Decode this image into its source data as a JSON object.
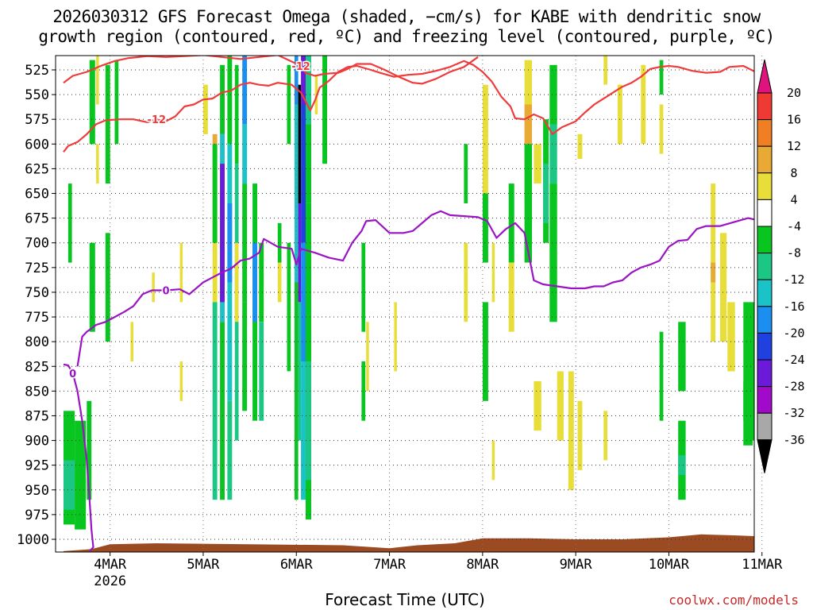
{
  "title": {
    "line1": "2026030312 GFS Forecast Omega (shaded, −cm/s) for KABE with dendritic snow",
    "line2": "growth region (contoured, red, ºC) and freezing level (contoured, purple, ºC)"
  },
  "xlabel": "Forecast Time (UTC)",
  "credit": "coolwx.com/models",
  "chart_data": {
    "type": "heatmap",
    "title": "2026030312 GFS Forecast Omega (shaded, −cm/s) for KABE with dendritic snow growth region (contoured, red, ºC) and freezing level (contoured, purple, ºC)",
    "xlabel": "Forecast Time (UTC)",
    "ylabel": "",
    "x_axis": {
      "unit": "days from 2026-03-03 12Z",
      "range": [
        0,
        7.75
      ],
      "ticks": [
        {
          "x": 0.5,
          "label": "4MAR",
          "sublabel": "2026"
        },
        {
          "x": 1.5,
          "label": "5MAR"
        },
        {
          "x": 2.5,
          "label": "6MAR"
        },
        {
          "x": 3.5,
          "label": "7MAR"
        },
        {
          "x": 4.5,
          "label": "8MAR"
        },
        {
          "x": 5.5,
          "label": "9MAR"
        },
        {
          "x": 6.5,
          "label": "10MAR"
        },
        {
          "x": 7.5,
          "label": "11MAR"
        }
      ]
    },
    "y_axis": {
      "unit": "hPa",
      "range": [
        1012,
        510
      ],
      "inverted": true,
      "ticks": [
        525,
        550,
        575,
        600,
        625,
        650,
        675,
        700,
        725,
        750,
        775,
        800,
        825,
        850,
        875,
        900,
        925,
        950,
        975,
        1000
      ]
    },
    "grid": "dotted",
    "colorbar": {
      "levels": [
        20,
        16,
        12,
        8,
        4,
        -4,
        -8,
        -12,
        -16,
        -20,
        -24,
        -28,
        -32,
        -36
      ],
      "colors": {
        "gt20": "#e0127e",
        "16to20": "#ef3a34",
        "12to16": "#f07e22",
        "8to12": "#e8aa34",
        "4to8": "#e8de3a",
        "neg4to4": "#ffffff",
        "neg8toneg4": "#08c520",
        "neg12toneg8": "#1cc786",
        "neg16toneg12": "#1ac3c7",
        "neg20toneg16": "#1a8ff0",
        "neg24toneg20": "#2040e0",
        "neg28toneg24": "#6a1ad8",
        "neg32toneg28": "#a00ac8",
        "neg36toneg32": "#a8a8a8",
        "lt_neg36": "#000000"
      }
    },
    "ground_color": "#9c4a22",
    "series": [
      {
        "name": "-12",
        "color": "#ef3b3b",
        "points": [
          [
            0.0,
            608
          ],
          [
            0.05,
            602
          ],
          [
            0.15,
            598
          ],
          [
            0.25,
            590
          ],
          [
            0.35,
            580
          ],
          [
            0.45,
            576
          ],
          [
            0.6,
            575
          ],
          [
            0.75,
            575
          ],
          [
            0.9,
            578
          ],
          [
            1.0,
            575
          ],
          [
            1.1,
            577
          ],
          [
            1.2,
            572
          ],
          [
            1.3,
            562
          ],
          [
            1.4,
            560
          ],
          [
            1.5,
            555
          ],
          [
            1.6,
            554
          ],
          [
            1.7,
            548
          ],
          [
            1.8,
            546
          ],
          [
            1.9,
            540
          ],
          [
            2.0,
            538
          ],
          [
            2.1,
            540
          ],
          [
            2.2,
            541
          ],
          [
            2.3,
            538
          ],
          [
            2.45,
            540
          ],
          [
            2.55,
            548
          ],
          [
            2.65,
            566
          ],
          [
            2.7,
            556
          ],
          [
            2.75,
            543
          ],
          [
            2.85,
            536
          ],
          [
            2.95,
            527
          ],
          [
            3.05,
            522
          ],
          [
            3.15,
            521
          ],
          [
            3.3,
            525
          ],
          [
            3.4,
            528
          ],
          [
            3.55,
            532
          ],
          [
            3.7,
            530
          ],
          [
            3.85,
            529
          ],
          [
            4.0,
            526
          ],
          [
            4.15,
            522
          ],
          [
            4.3,
            516
          ],
          [
            4.4,
            520
          ],
          [
            4.5,
            527
          ],
          [
            4.6,
            537
          ],
          [
            4.7,
            552
          ],
          [
            4.8,
            562
          ],
          [
            4.85,
            574
          ],
          [
            4.95,
            575
          ],
          [
            5.05,
            570
          ],
          [
            5.15,
            574
          ],
          [
            5.25,
            590
          ],
          [
            5.35,
            583
          ],
          [
            5.5,
            577
          ],
          [
            5.6,
            568
          ],
          [
            5.7,
            560
          ],
          [
            5.8,
            554
          ],
          [
            5.9,
            548
          ],
          [
            6.0,
            542
          ],
          [
            6.1,
            538
          ],
          [
            6.2,
            532
          ],
          [
            6.3,
            524
          ],
          [
            6.4,
            522
          ],
          [
            6.5,
            521
          ],
          [
            6.6,
            522
          ],
          [
            6.75,
            526
          ],
          [
            6.9,
            528
          ],
          [
            7.05,
            527
          ],
          [
            7.15,
            522
          ],
          [
            7.3,
            521
          ],
          [
            7.45,
            528
          ],
          [
            7.6,
            528
          ]
        ],
        "label_x": 0.95
      },
      {
        "name": "-12",
        "color": "#ef3b3b",
        "points": [
          [
            0.0,
            538
          ],
          [
            0.1,
            531
          ],
          [
            0.25,
            527
          ],
          [
            0.4,
            521
          ],
          [
            0.55,
            516
          ],
          [
            0.7,
            513
          ],
          [
            0.9,
            511
          ],
          [
            1.1,
            512
          ],
          [
            1.3,
            511
          ],
          [
            1.5,
            510
          ],
          [
            1.7,
            512
          ],
          [
            1.9,
            514
          ],
          [
            2.1,
            512
          ],
          [
            2.3,
            510
          ],
          [
            2.55,
            521
          ],
          [
            2.6,
            528
          ],
          [
            2.7,
            531
          ],
          [
            2.8,
            529
          ],
          [
            2.95,
            528
          ],
          [
            3.05,
            524
          ],
          [
            3.15,
            519
          ],
          [
            3.3,
            519
          ],
          [
            3.45,
            525
          ],
          [
            3.6,
            532
          ],
          [
            3.75,
            538
          ],
          [
            3.85,
            539
          ],
          [
            4.0,
            534
          ],
          [
            4.15,
            527
          ],
          [
            4.3,
            522
          ],
          [
            4.45,
            512
          ]
        ],
        "label_x": 2.5
      },
      {
        "name": "0",
        "color": "#9a14c4",
        "points": [
          [
            0.0,
            823
          ],
          [
            0.05,
            824
          ],
          [
            0.1,
            832
          ],
          [
            0.15,
            850
          ],
          [
            0.2,
            880
          ],
          [
            0.25,
            920
          ],
          [
            0.28,
            960
          ],
          [
            0.3,
            990
          ],
          [
            0.32,
            1008
          ],
          [
            0.28,
            1012
          ]
        ],
        "label_x": 0.08
      },
      {
        "name": "0",
        "color": "#9a14c4",
        "points": [
          [
            0.15,
            825
          ],
          [
            0.2,
            795
          ],
          [
            0.25,
            790
          ],
          [
            0.35,
            783
          ],
          [
            0.45,
            780
          ],
          [
            0.55,
            775
          ],
          [
            0.65,
            770
          ],
          [
            0.75,
            764
          ],
          [
            0.85,
            752
          ],
          [
            0.95,
            748
          ],
          [
            1.1,
            748
          ],
          [
            1.25,
            747
          ],
          [
            1.35,
            752
          ],
          [
            1.5,
            740
          ],
          [
            1.6,
            735
          ],
          [
            1.7,
            730
          ],
          [
            1.8,
            726
          ],
          [
            1.9,
            718
          ],
          [
            2.0,
            716
          ],
          [
            2.1,
            710
          ],
          [
            2.15,
            696
          ],
          [
            2.3,
            704
          ],
          [
            2.45,
            706
          ],
          [
            2.5,
            722
          ],
          [
            2.55,
            706
          ],
          [
            2.7,
            710
          ],
          [
            2.85,
            715
          ],
          [
            3.0,
            718
          ],
          [
            3.1,
            700
          ],
          [
            3.2,
            688
          ],
          [
            3.25,
            678
          ],
          [
            3.35,
            677
          ],
          [
            3.5,
            690
          ],
          [
            3.65,
            690
          ],
          [
            3.75,
            688
          ],
          [
            3.85,
            680
          ],
          [
            3.95,
            672
          ],
          [
            4.05,
            668
          ],
          [
            4.15,
            672
          ],
          [
            4.3,
            673
          ],
          [
            4.45,
            674
          ],
          [
            4.55,
            678
          ],
          [
            4.65,
            695
          ],
          [
            4.75,
            686
          ],
          [
            4.85,
            680
          ],
          [
            4.95,
            690
          ],
          [
            5.05,
            738
          ],
          [
            5.15,
            742
          ],
          [
            5.3,
            744
          ],
          [
            5.45,
            746
          ],
          [
            5.6,
            746
          ],
          [
            5.7,
            744
          ],
          [
            5.8,
            744
          ],
          [
            5.9,
            740
          ],
          [
            6.0,
            738
          ],
          [
            6.1,
            730
          ],
          [
            6.2,
            725
          ],
          [
            6.3,
            722
          ],
          [
            6.4,
            718
          ],
          [
            6.5,
            704
          ],
          [
            6.6,
            698
          ],
          [
            6.7,
            697
          ],
          [
            6.8,
            686
          ],
          [
            6.9,
            683
          ],
          [
            7.05,
            683
          ],
          [
            7.2,
            679
          ],
          [
            7.35,
            675
          ],
          [
            7.5,
            678
          ],
          [
            7.6,
            676
          ],
          [
            7.75,
            674
          ]
        ],
        "label_x": 1.0
      }
    ]
  }
}
